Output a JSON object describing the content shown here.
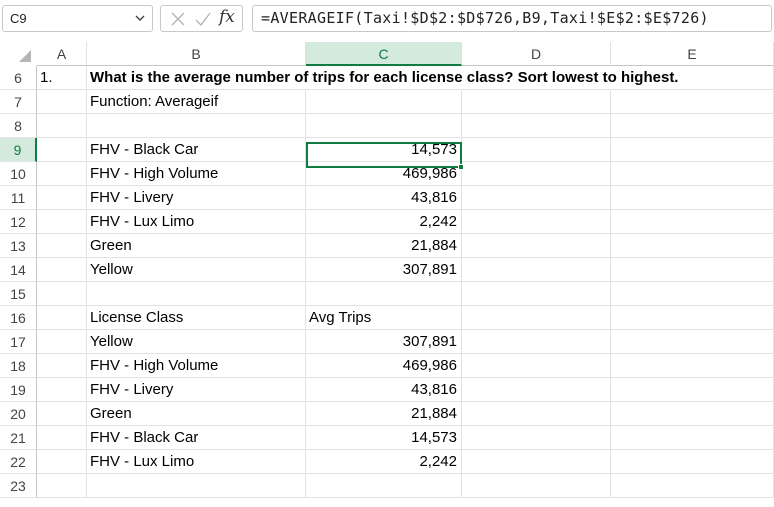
{
  "name_box": {
    "value": "C9"
  },
  "formula_bar": {
    "fx_label": "fx",
    "formula": "=AVERAGEIF(Taxi!$D$2:$D$726,B9,Taxi!$E$2:$E$726)"
  },
  "columns": [
    "A",
    "B",
    "C",
    "D",
    "E"
  ],
  "active_column": "C",
  "active_row": "9",
  "rows": [
    {
      "num": "6",
      "A": "1.",
      "B": "What is the average number of trips for each license class? Sort lowest to highest.",
      "C": ""
    },
    {
      "num": "7",
      "A": "",
      "B": "Function:  Averageif",
      "C": ""
    },
    {
      "num": "8",
      "A": "",
      "B": "",
      "C": ""
    },
    {
      "num": "9",
      "A": "",
      "B": "FHV - Black Car",
      "C": "14,573"
    },
    {
      "num": "10",
      "A": "",
      "B": "FHV - High Volume",
      "C": "469,986"
    },
    {
      "num": "11",
      "A": "",
      "B": "FHV - Livery",
      "C": "43,816"
    },
    {
      "num": "12",
      "A": "",
      "B": "FHV - Lux Limo",
      "C": "2,242"
    },
    {
      "num": "13",
      "A": "",
      "B": "Green",
      "C": "21,884"
    },
    {
      "num": "14",
      "A": "",
      "B": "Yellow",
      "C": "307,891"
    },
    {
      "num": "15",
      "A": "",
      "B": "",
      "C": ""
    },
    {
      "num": "16",
      "A": "",
      "B": "License Class",
      "C": "Avg Trips"
    },
    {
      "num": "17",
      "A": "",
      "B": "Yellow",
      "C": "307,891"
    },
    {
      "num": "18",
      "A": "",
      "B": "FHV - High Volume",
      "C": "469,986"
    },
    {
      "num": "19",
      "A": "",
      "B": "FHV - Livery",
      "C": "43,816"
    },
    {
      "num": "20",
      "A": "",
      "B": "Green",
      "C": "21,884"
    },
    {
      "num": "21",
      "A": "",
      "B": "FHV - Black Car",
      "C": "14,573"
    },
    {
      "num": "22",
      "A": "",
      "B": "FHV - Lux Limo",
      "C": "2,242"
    },
    {
      "num": "23",
      "A": "",
      "B": "",
      "C": ""
    }
  ],
  "colors": {
    "accent": "#107c41",
    "header_active_bg": "#d3eadc",
    "gridline": "#e1e1e1"
  },
  "icons": {
    "namebox_dropdown": "chevron-down-icon",
    "cancel": "cancel-x-icon",
    "enter": "check-icon",
    "corner": "select-all-triangle-icon"
  }
}
